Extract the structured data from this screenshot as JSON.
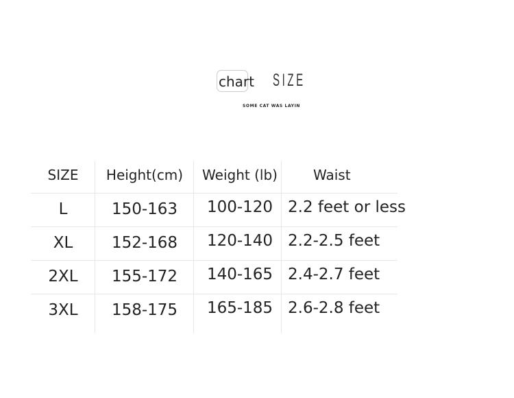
{
  "header": {
    "logo_word": "chart",
    "logo_title": "SIZE",
    "subtitle": "SOME CAT WAS LAYIN"
  },
  "chart_data": {
    "type": "table",
    "columns": [
      "SIZE",
      "Height(cm)",
      "Weight (lb)",
      "Waist"
    ],
    "rows": [
      [
        "L",
        "150-163",
        "100-120",
        "2.2 feet or less"
      ],
      [
        "XL",
        "152-168",
        "120-140",
        "2.2-2.5 feet"
      ],
      [
        "2XL",
        "155-172",
        "140-165",
        "2.4-2.7 feet"
      ],
      [
        "3XL",
        "158-175",
        "165-185",
        "2.6-2.8 feet"
      ]
    ]
  }
}
